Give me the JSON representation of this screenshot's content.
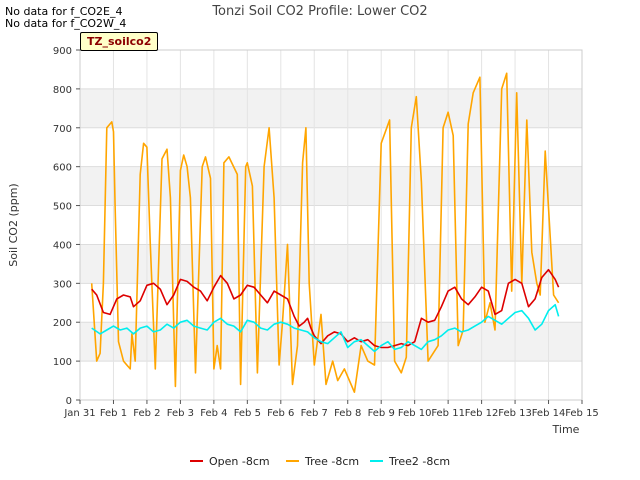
{
  "no_data_notes": [
    "No data for f_CO2E_4",
    "No data for f_CO2W_4"
  ],
  "badge": "TZ_soilco2",
  "chart_data": {
    "type": "line",
    "title": "Tonzi Soil CO2 Profile: Lower CO2",
    "xlabel": "Time",
    "ylabel": "Soil CO2 (ppm)",
    "ylim": [
      0,
      900
    ],
    "yticks": [
      0,
      100,
      200,
      300,
      400,
      500,
      600,
      700,
      800,
      900
    ],
    "xlim": [
      0,
      15
    ],
    "xticks": [
      0,
      1,
      2,
      3,
      4,
      5,
      6,
      7,
      8,
      9,
      10,
      11,
      12,
      13,
      14,
      15
    ],
    "xtick_labels": [
      "Jan 31",
      "Feb 1",
      "Feb 2",
      "Feb 3",
      "Feb 4",
      "Feb 5",
      "Feb 6",
      "Feb 7",
      "Feb 8",
      "Feb 9",
      "Feb 10",
      "Feb 11",
      "Feb 12",
      "Feb 13",
      "Feb 14",
      "Feb 15"
    ],
    "grid": true,
    "legend_position": "bottom",
    "series": [
      {
        "name": "Open -8cm",
        "color": "#dd0000",
        "x": [
          0.35,
          0.5,
          0.7,
          0.9,
          1.1,
          1.3,
          1.5,
          1.6,
          1.8,
          2.0,
          2.2,
          2.4,
          2.6,
          2.8,
          3.0,
          3.2,
          3.4,
          3.6,
          3.8,
          4.0,
          4.2,
          4.4,
          4.6,
          4.8,
          5.0,
          5.2,
          5.4,
          5.6,
          5.8,
          6.0,
          6.2,
          6.4,
          6.55,
          6.7,
          6.8,
          6.9,
          7.0,
          7.2,
          7.4,
          7.6,
          7.8,
          8.0,
          8.2,
          8.4,
          8.6,
          8.8,
          9.0,
          9.2,
          9.4,
          9.6,
          9.8,
          10.0,
          10.2,
          10.4,
          10.6,
          10.8,
          11.0,
          11.2,
          11.4,
          11.6,
          11.8,
          12.0,
          12.2,
          12.4,
          12.6,
          12.8,
          13.0,
          13.2,
          13.4,
          13.6,
          13.8,
          14.0,
          14.2,
          14.3
        ],
        "y": [
          285,
          270,
          225,
          220,
          260,
          270,
          265,
          240,
          255,
          295,
          300,
          285,
          245,
          270,
          310,
          305,
          290,
          280,
          255,
          290,
          320,
          300,
          260,
          270,
          295,
          290,
          270,
          250,
          280,
          270,
          260,
          215,
          190,
          200,
          210,
          185,
          165,
          145,
          165,
          175,
          170,
          150,
          160,
          150,
          155,
          140,
          135,
          135,
          140,
          145,
          140,
          150,
          210,
          200,
          205,
          240,
          280,
          290,
          260,
          245,
          265,
          290,
          280,
          220,
          230,
          300,
          310,
          300,
          240,
          260,
          315,
          335,
          310,
          290
        ],
        "notes": "visible portions of the Open -8cm trace"
      },
      {
        "name": "Tree -8cm",
        "color": "#ffa500",
        "x": [
          0.35,
          0.5,
          0.6,
          0.7,
          0.8,
          0.95,
          1.0,
          1.05,
          1.15,
          1.3,
          1.5,
          1.55,
          1.65,
          1.8,
          1.9,
          2.0,
          2.1,
          2.25,
          2.45,
          2.6,
          2.7,
          2.85,
          3.0,
          3.1,
          3.2,
          3.3,
          3.45,
          3.65,
          3.75,
          3.9,
          4.0,
          4.1,
          4.2,
          4.3,
          4.45,
          4.7,
          4.8,
          4.95,
          5.0,
          5.15,
          5.3,
          5.5,
          5.65,
          5.8,
          5.95,
          6.05,
          6.2,
          6.35,
          6.5,
          6.65,
          6.75,
          6.85,
          7.0,
          7.2,
          7.35,
          7.55,
          7.7,
          7.9,
          8.2,
          8.4,
          8.6,
          8.8,
          9.0,
          9.25,
          9.4,
          9.6,
          9.75,
          9.9,
          10.05,
          10.2,
          10.4,
          10.55,
          10.7,
          10.85,
          11.0,
          11.15,
          11.3,
          11.45,
          11.6,
          11.75,
          11.95,
          12.1,
          12.25,
          12.4,
          12.6,
          12.75,
          12.9,
          13.05,
          13.2,
          13.35,
          13.5,
          13.65,
          13.75,
          13.9,
          14.05,
          14.15,
          14.3
        ],
        "y": [
          300,
          100,
          120,
          300,
          700,
          715,
          690,
          500,
          150,
          100,
          80,
          170,
          100,
          580,
          660,
          650,
          400,
          80,
          620,
          645,
          520,
          35,
          590,
          630,
          600,
          520,
          70,
          600,
          625,
          570,
          80,
          140,
          80,
          610,
          625,
          580,
          40,
          600,
          610,
          550,
          70,
          600,
          700,
          520,
          90,
          200,
          400,
          40,
          140,
          610,
          700,
          300,
          90,
          220,
          40,
          100,
          50,
          80,
          20,
          140,
          100,
          90,
          660,
          720,
          100,
          70,
          110,
          700,
          780,
          560,
          100,
          120,
          140,
          700,
          740,
          680,
          140,
          180,
          710,
          790,
          830,
          200,
          250,
          180,
          800,
          840,
          280,
          790,
          300,
          720,
          380,
          300,
          270,
          640,
          420,
          270,
          250
        ],
        "notes": "approximate reading of the Tree -8cm trace"
      },
      {
        "name": "Tree2 -8cm",
        "color": "#00eeee",
        "x": [
          0.35,
          0.6,
          0.8,
          1.0,
          1.2,
          1.4,
          1.6,
          1.8,
          2.0,
          2.2,
          2.4,
          2.6,
          2.8,
          3.0,
          3.2,
          3.4,
          3.6,
          3.8,
          4.0,
          4.2,
          4.4,
          4.6,
          4.8,
          5.0,
          5.2,
          5.4,
          5.6,
          5.8,
          6.0,
          6.2,
          6.4,
          6.6,
          6.8,
          7.0,
          7.2,
          7.4,
          7.6,
          7.8,
          8.0,
          8.2,
          8.4,
          8.6,
          8.8,
          9.0,
          9.2,
          9.4,
          9.6,
          9.8,
          10.0,
          10.2,
          10.4,
          10.6,
          10.8,
          11.0,
          11.2,
          11.4,
          11.6,
          11.8,
          12.0,
          12.2,
          12.4,
          12.6,
          12.8,
          13.0,
          13.2,
          13.4,
          13.6,
          13.8,
          14.0,
          14.2,
          14.3
        ],
        "y": [
          185,
          170,
          180,
          190,
          180,
          185,
          170,
          185,
          190,
          175,
          180,
          195,
          185,
          200,
          205,
          190,
          185,
          180,
          200,
          210,
          195,
          190,
          175,
          205,
          200,
          185,
          180,
          195,
          200,
          195,
          185,
          180,
          175,
          160,
          150,
          145,
          160,
          175,
          135,
          150,
          155,
          140,
          125,
          140,
          150,
          130,
          135,
          150,
          140,
          130,
          150,
          155,
          165,
          180,
          185,
          175,
          180,
          190,
          200,
          215,
          205,
          195,
          210,
          225,
          230,
          210,
          180,
          195,
          230,
          245,
          215
        ],
        "notes": "approximate reading of the Tree2 -8cm trace"
      }
    ]
  }
}
